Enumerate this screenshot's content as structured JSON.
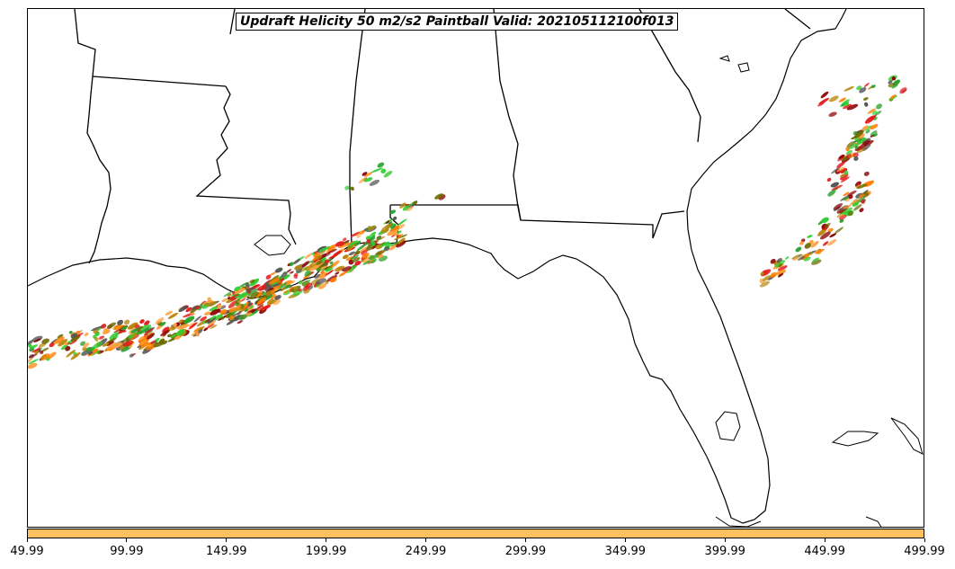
{
  "title": "Updraft Helicity 50 m2/s2 Paintball Valid: 202105112100f013",
  "colorbar": {
    "color": "#FFC060",
    "ticks": [
      "49.99",
      "99.99",
      "149.99",
      "199.99",
      "249.99",
      "299.99",
      "349.99",
      "399.99",
      "449.99",
      "499.99"
    ]
  },
  "member_colors": [
    "#e41a1c",
    "#ff7f00",
    "#2ca02c",
    "#8b0000",
    "#6b6b00",
    "#32cd32",
    "#555555",
    "#ffa040",
    "#b8860b"
  ]
}
